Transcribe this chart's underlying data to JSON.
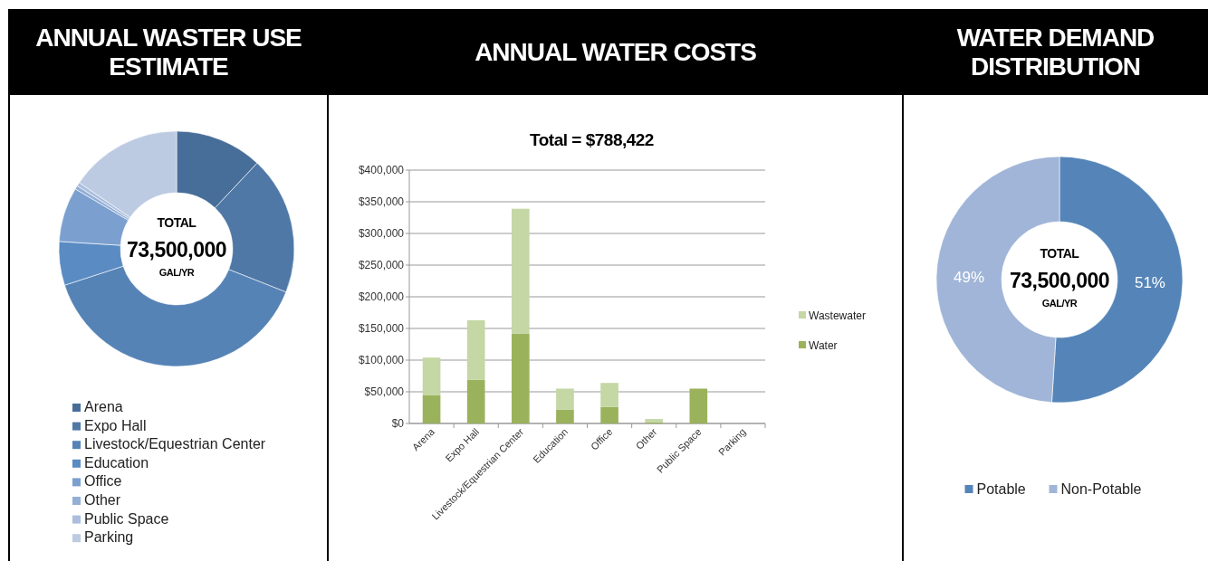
{
  "chart_data": [
    {
      "type": "donut",
      "title": "ANNUAL WASTER USE ESTIMATE",
      "categories": [
        "Arena",
        "Expo Hall",
        "Livestock/Equestrian Center",
        "Education",
        "Office",
        "Other",
        "Public Space",
        "Parking"
      ],
      "values": [
        12,
        19,
        39,
        6,
        7.5,
        0.5,
        0.5,
        15.5
      ],
      "colors": [
        "#476e99",
        "#4f78a6",
        "#5683b6",
        "#5a8bc2",
        "#7b9fcf",
        "#93afd6",
        "#a9bedd",
        "#bccbe2"
      ],
      "annotations": [
        "TOTAL",
        "73,500,000",
        "GAL/YR"
      ],
      "legend": "bottom"
    },
    {
      "type": "bar",
      "title": "ANNUAL WATER COSTS",
      "subtitle": "Total = $788,422",
      "stacked": true,
      "categories": [
        "Arena",
        "Expo Hall",
        "Livestock/Equestrian Center",
        "Education",
        "Office",
        "Other",
        "Public Space",
        "Parking"
      ],
      "series": [
        {
          "name": "Water",
          "color": "#9bb25c",
          "values": [
            45000,
            69000,
            142000,
            22000,
            26000,
            2000,
            55000,
            0
          ]
        },
        {
          "name": "Wastewater",
          "color": "#c4d7a5",
          "values": [
            59000,
            94000,
            197000,
            33000,
            38000,
            5000,
            0,
            0
          ]
        }
      ],
      "ylim": [
        0,
        400000
      ],
      "yticks": [
        {
          "value": 0,
          "label": "$0"
        },
        {
          "value": 50000,
          "label": "$50,000"
        },
        {
          "value": 100000,
          "label": "$100,000"
        },
        {
          "value": 150000,
          "label": "$150,000"
        },
        {
          "value": 200000,
          "label": "$200,000"
        },
        {
          "value": 250000,
          "label": "$250,000"
        },
        {
          "value": 300000,
          "label": "$300,000"
        },
        {
          "value": 350000,
          "label": "$350,000"
        },
        {
          "value": 400000,
          "label": "$400,000"
        }
      ],
      "grid": "y",
      "legend": "right"
    },
    {
      "type": "donut",
      "title": "WATER DEMAND DISTRIBUTION",
      "categories": [
        "Potable",
        "Non-Potable"
      ],
      "values": [
        51,
        49
      ],
      "colors": [
        "#5585b8",
        "#a1b5d8"
      ],
      "value_labels": [
        "51%",
        "49%"
      ],
      "annotations": [
        "TOTAL",
        "73,500,000",
        "GAL/YR"
      ],
      "legend": "bottom"
    }
  ]
}
